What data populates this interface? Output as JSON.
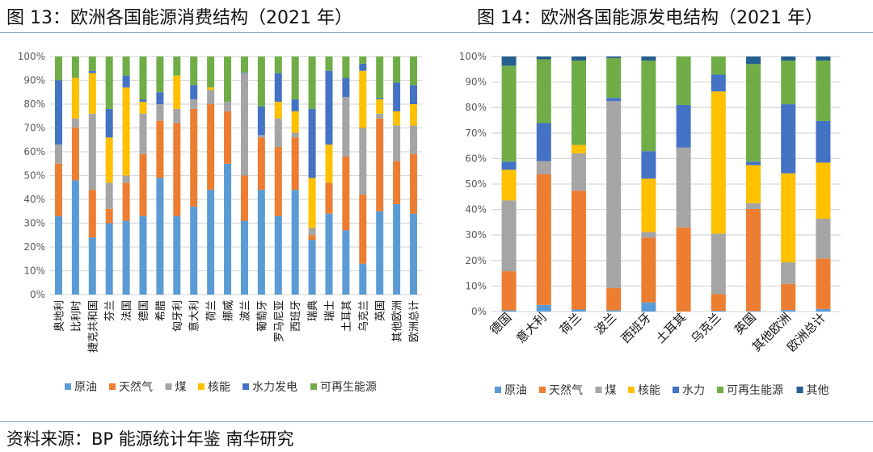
{
  "titles": {
    "left": "图 13：欧洲各国能源消费结构（2021 年）",
    "right": "图 14：欧洲各国能源发电结构（2021 年）"
  },
  "source": "资料来源：BP 能源统计年鉴  南华研究",
  "chart_data": [
    {
      "type": "bar",
      "stacked": true,
      "percent": true,
      "title": "图 13：欧洲各国能源消费结构（2021 年）",
      "ylim": [
        0,
        100
      ],
      "yticks": [
        "0%",
        "10%",
        "20%",
        "30%",
        "40%",
        "50%",
        "60%",
        "70%",
        "80%",
        "90%",
        "100%"
      ],
      "grid": true,
      "legend": "bottom",
      "categories": [
        "奥地利",
        "比利时",
        "捷克共和国",
        "芬兰",
        "法国",
        "德国",
        "希腊",
        "匈牙利",
        "意大利",
        "荷兰",
        "挪威",
        "波兰",
        "葡萄牙",
        "罗马尼亚",
        "西班牙",
        "瑞典",
        "瑞士",
        "土耳其",
        "乌克兰",
        "英国",
        "其他欧洲",
        "欧洲总计"
      ],
      "series": [
        {
          "name": "原油",
          "color": "#5b9bd5",
          "values": [
            33,
            48,
            24,
            30,
            31,
            33,
            49,
            33,
            37,
            44,
            55,
            31,
            44,
            33,
            44,
            23,
            34,
            27,
            13,
            35,
            38,
            34
          ]
        },
        {
          "name": "天然气",
          "color": "#ed7d31",
          "values": [
            22,
            22,
            20,
            6,
            16,
            26,
            24,
            39,
            41,
            36,
            22,
            19,
            22,
            29,
            22,
            2,
            13,
            31,
            29,
            39,
            18,
            25
          ]
        },
        {
          "name": "煤",
          "color": "#a5a5a5",
          "values": [
            8,
            4,
            32,
            11,
            3,
            17,
            7,
            6,
            4,
            6,
            4,
            43,
            1,
            12,
            2,
            3,
            0,
            25,
            28,
            2,
            15,
            12
          ]
        },
        {
          "name": "核能",
          "color": "#ffc000",
          "values": [
            0,
            17,
            17,
            19,
            37,
            5,
            0,
            14,
            0,
            1,
            0,
            0,
            0,
            7,
            9,
            21,
            16,
            0,
            24,
            6,
            6,
            9
          ]
        },
        {
          "name": "水力发电",
          "color": "#4472c4",
          "values": [
            27,
            0,
            1,
            12,
            5,
            1,
            5,
            0,
            6,
            0,
            0,
            0.3,
            12,
            12,
            5,
            29,
            31,
            8,
            3,
            0.5,
            12,
            8
          ]
        },
        {
          "name": "可再生能源",
          "color": "#70ad47",
          "values": [
            10,
            9,
            6,
            22,
            8,
            18,
            15,
            8,
            12,
            13,
            19,
            6.7,
            21,
            7,
            18,
            22,
            6,
            9,
            3,
            17.5,
            11,
            12
          ]
        }
      ]
    },
    {
      "type": "bar",
      "stacked": true,
      "percent": true,
      "title": "图 14：欧洲各国能源发电结构（2021 年）",
      "ylim": [
        0,
        100
      ],
      "yticks": [
        "0%",
        "10%",
        "20%",
        "30%",
        "40%",
        "50%",
        "60%",
        "70%",
        "80%",
        "90%",
        "100%"
      ],
      "grid": true,
      "legend": "bottom",
      "categories": [
        "德国",
        "意大利",
        "荷兰",
        "波兰",
        "西班牙",
        "土耳其",
        "乌克兰",
        "英国",
        "其他欧洲",
        "欧洲总计"
      ],
      "series": [
        {
          "name": "原油",
          "color": "#5b9bd5",
          "values": [
            0.5,
            2.6,
            0.8,
            0.5,
            3.6,
            0,
            0.3,
            0.2,
            0.6,
            1
          ]
        },
        {
          "name": "天然气",
          "color": "#ed7d31",
          "values": [
            15.3,
            51.2,
            46.6,
            8.7,
            25.4,
            33,
            6.5,
            40,
            10.2,
            19.8
          ]
        },
        {
          "name": "煤",
          "color": "#a5a5a5",
          "values": [
            27.8,
            5.2,
            14.6,
            73.3,
            2.2,
            31.3,
            23.7,
            2.3,
            8.5,
            15.6
          ]
        },
        {
          "name": "核能",
          "color": "#ffc000",
          "values": [
            12,
            0,
            3.3,
            0,
            20.9,
            0,
            55.8,
            14.9,
            34.9,
            22
          ]
        },
        {
          "name": "水力",
          "color": "#4472c4",
          "values": [
            3.2,
            14.9,
            0,
            1.3,
            10.8,
            16.7,
            6.6,
            1.4,
            27.1,
            16.3
          ]
        },
        {
          "name": "可再生能源",
          "color": "#70ad47",
          "values": [
            37.6,
            25,
            33.1,
            15.6,
            35.5,
            19,
            7.1,
            38.3,
            17.1,
            23.7
          ]
        },
        {
          "name": "其他",
          "color": "#255e91",
          "values": [
            3.6,
            1.1,
            1.6,
            0.6,
            1.6,
            0,
            0,
            2.9,
            1.6,
            1.6
          ]
        }
      ]
    }
  ]
}
